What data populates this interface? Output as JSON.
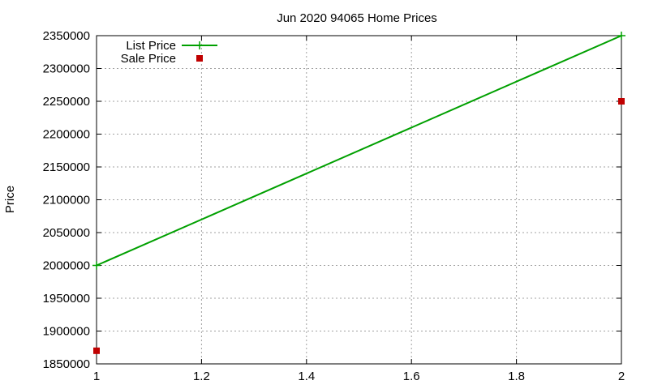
{
  "colors": {
    "list_price": "#00a000",
    "sale_price": "#c00000",
    "grid": "#a0a0a0",
    "axes": "#000000"
  },
  "chart_data": {
    "type": "line",
    "title": "Jun 2020 94065 Home Prices",
    "xlabel": "",
    "ylabel": "Price",
    "xlim": [
      1,
      2
    ],
    "ylim": [
      1850000,
      2350000
    ],
    "xticks": [
      1,
      1.2,
      1.4,
      1.6,
      1.8,
      2
    ],
    "xtick_labels": [
      "1",
      "1.2",
      "1.4",
      "1.6",
      "1.8",
      "2"
    ],
    "yticks": [
      1850000,
      1900000,
      1950000,
      2000000,
      2050000,
      2100000,
      2150000,
      2200000,
      2250000,
      2300000,
      2350000
    ],
    "ytick_labels": [
      "1850000",
      "1900000",
      "1950000",
      "2000000",
      "2050000",
      "2100000",
      "2150000",
      "2200000",
      "2250000",
      "2300000",
      "2350000"
    ],
    "grid": true,
    "legend_position": "top-left",
    "series": [
      {
        "name": "List Price",
        "style": "linespoints",
        "marker": "plus",
        "color": "#00a000",
        "points": [
          [
            1,
            2000000
          ],
          [
            2,
            2350000
          ]
        ]
      },
      {
        "name": "Sale Price",
        "style": "points",
        "marker": "square",
        "color": "#c00000",
        "points": [
          [
            1,
            1870000
          ],
          [
            2,
            2250000
          ]
        ]
      }
    ]
  }
}
